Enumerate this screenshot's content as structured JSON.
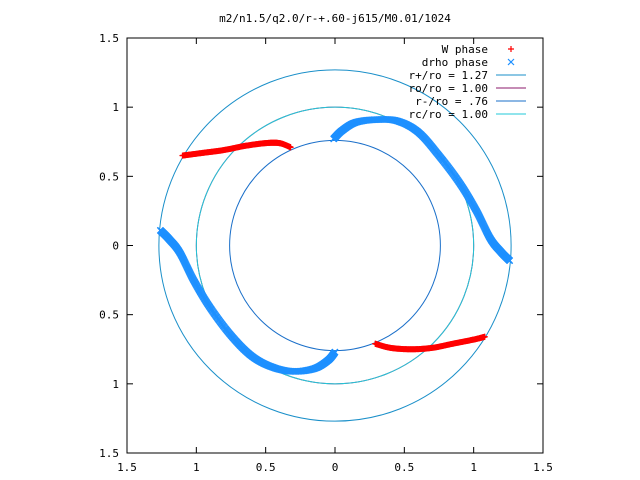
{
  "chart_data": {
    "type": "scatter",
    "title": "m2/n1.5/q2.0/r-+.60-j615/M0.01/1024",
    "xlabel": "",
    "ylabel": "",
    "xlim": [
      -1.5,
      1.5
    ],
    "ylim": [
      -1.5,
      1.5
    ],
    "x_tick_labels": [
      "1.5",
      "1",
      "0.5",
      "0",
      "0.5",
      "1",
      "1.5"
    ],
    "y_tick_labels": [
      "1.5",
      "1",
      "0.5",
      "0",
      "0.5",
      "1",
      "1.5"
    ],
    "x_tick_values": [
      -1.5,
      -1,
      -0.5,
      0,
      0.5,
      1,
      1.5
    ],
    "y_tick_values": [
      1.5,
      1,
      0.5,
      0,
      -0.5,
      -1,
      -1.5
    ],
    "grid": false,
    "legend_position": "top-right",
    "series": [
      {
        "name": "W phase",
        "marker": "plus",
        "color": "#ff0000",
        "segments": [
          [
            [
              -1.1,
              0.65
            ],
            [
              -0.95,
              0.67
            ],
            [
              -0.8,
              0.69
            ],
            [
              -0.65,
              0.72
            ],
            [
              -0.5,
              0.74
            ],
            [
              -0.4,
              0.74
            ],
            [
              -0.32,
              0.71
            ]
          ],
          [
            [
              0.29,
              -0.71
            ],
            [
              0.4,
              -0.74
            ],
            [
              0.55,
              -0.75
            ],
            [
              0.7,
              -0.74
            ],
            [
              0.85,
              -0.71
            ],
            [
              1.0,
              -0.68
            ],
            [
              1.08,
              -0.66
            ]
          ]
        ]
      },
      {
        "name": "drho phase",
        "marker": "cross",
        "color": "#1e90ff",
        "segments": [
          [
            [
              -0.01,
              0.77
            ],
            [
              0.05,
              0.83
            ],
            [
              0.15,
              0.89
            ],
            [
              0.3,
              0.91
            ],
            [
              0.45,
              0.9
            ],
            [
              0.6,
              0.82
            ],
            [
              0.75,
              0.65
            ],
            [
              0.9,
              0.45
            ],
            [
              1.02,
              0.25
            ],
            [
              1.12,
              0.05
            ],
            [
              1.2,
              -0.05
            ],
            [
              1.26,
              -0.11
            ]
          ],
          [
            [
              0.0,
              -0.77
            ],
            [
              -0.05,
              -0.83
            ],
            [
              -0.15,
              -0.89
            ],
            [
              -0.3,
              -0.91
            ],
            [
              -0.45,
              -0.88
            ],
            [
              -0.6,
              -0.8
            ],
            [
              -0.75,
              -0.65
            ],
            [
              -0.9,
              -0.45
            ],
            [
              -1.02,
              -0.25
            ],
            [
              -1.12,
              -0.05
            ],
            [
              -1.2,
              0.05
            ],
            [
              -1.26,
              0.11
            ]
          ]
        ]
      }
    ],
    "circles": [
      {
        "name": "r+/ro = 1.27",
        "radius": 1.27,
        "color": "#1a8fc9"
      },
      {
        "name": "ro/ro = 1.00",
        "radius": 1.0,
        "color": "#8b1a6b"
      },
      {
        "name": "r-/ro = .76",
        "radius": 0.76,
        "color": "#1a6fc9"
      },
      {
        "name": "rc/ro = 1.00",
        "radius": 1.0,
        "color": "#22c8d8"
      }
    ]
  }
}
